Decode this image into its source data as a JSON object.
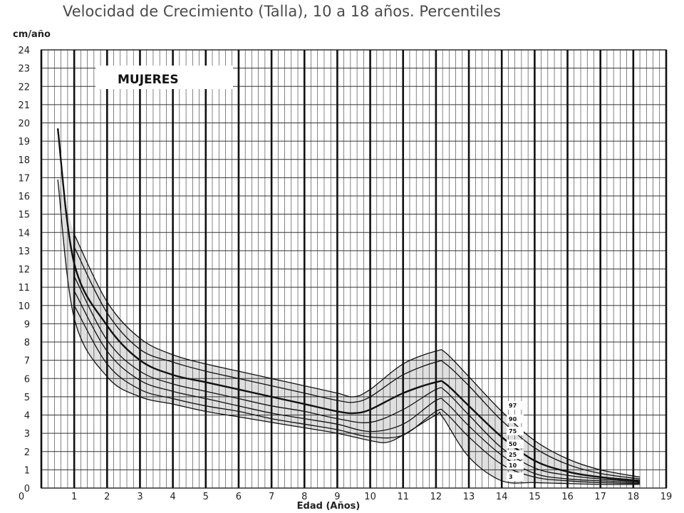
{
  "title": "Velocidad de Crecimiento (Talla), 10 a 18 años. Percentiles",
  "chart_data": {
    "type": "line",
    "title": "Velocidad de Crecimiento (Talla), 10 a 18 años. Percentiles",
    "panel_label": "MUJERES",
    "ylabel": "cm/año",
    "xlabel": "Edad (Años)",
    "xlim": [
      0,
      19
    ],
    "ylim": [
      0,
      24
    ],
    "x_ticks": [
      0,
      1,
      2,
      3,
      4,
      5,
      6,
      7,
      8,
      9,
      10,
      11,
      12,
      13,
      14,
      15,
      16,
      17,
      18,
      19
    ],
    "y_ticks": [
      0,
      1,
      2,
      3,
      4,
      5,
      6,
      7,
      8,
      9,
      10,
      11,
      12,
      13,
      14,
      15,
      16,
      17,
      18,
      19,
      20,
      21,
      22,
      23,
      24
    ],
    "grid": true,
    "series": [
      {
        "name": "97",
        "x": [
          1,
          2,
          3,
          4,
          5,
          6,
          7,
          8,
          9,
          9.5,
          10,
          11,
          12,
          12.3,
          13,
          14,
          15,
          16,
          17,
          18.2
        ],
        "y": [
          13.9,
          10.2,
          8.2,
          7.3,
          6.8,
          6.4,
          6.0,
          5.6,
          5.2,
          5.0,
          5.4,
          6.8,
          7.5,
          7.4,
          6.1,
          4.2,
          2.6,
          1.6,
          1.0,
          0.6
        ]
      },
      {
        "name": "90",
        "x": [
          1,
          2,
          3,
          4,
          5,
          6,
          7,
          8,
          9,
          9.5,
          10,
          11,
          12,
          12.3,
          13,
          14,
          15,
          16,
          17,
          18.2
        ],
        "y": [
          13.2,
          9.6,
          7.6,
          6.9,
          6.4,
          6.0,
          5.6,
          5.2,
          4.8,
          4.7,
          5.0,
          6.2,
          6.9,
          6.8,
          5.6,
          3.7,
          2.2,
          1.3,
          0.8,
          0.5
        ]
      },
      {
        "name": "75",
        "x": [
          0.5,
          1,
          2,
          3,
          4,
          5,
          6,
          7,
          8,
          9,
          9.5,
          10,
          11,
          12,
          12.3,
          13,
          14,
          15,
          16,
          17,
          18.2
        ],
        "y": [
          19.7,
          12.3,
          8.9,
          7.0,
          6.2,
          5.8,
          5.4,
          5.0,
          4.6,
          4.2,
          4.1,
          4.3,
          5.2,
          5.8,
          5.7,
          4.5,
          2.8,
          1.5,
          0.9,
          0.6,
          0.4
        ]
      },
      {
        "name": "50",
        "x": [
          1,
          2,
          3,
          4,
          5,
          6,
          7,
          8,
          9,
          10,
          11,
          12,
          12.3,
          13,
          14,
          15,
          16,
          17,
          18.2
        ],
        "y": [
          11.6,
          8.1,
          6.4,
          5.7,
          5.3,
          4.9,
          4.5,
          4.2,
          3.8,
          3.6,
          4.3,
          5.4,
          5.3,
          4.0,
          2.2,
          1.1,
          0.7,
          0.5,
          0.35
        ]
      },
      {
        "name": "25",
        "x": [
          1,
          2,
          3,
          4,
          5,
          6,
          7,
          8,
          9,
          10,
          11,
          12,
          12.3,
          13,
          14,
          15,
          16,
          17,
          18.2
        ],
        "y": [
          10.8,
          7.5,
          5.9,
          5.3,
          4.9,
          4.5,
          4.1,
          3.8,
          3.5,
          3.1,
          3.5,
          4.8,
          4.7,
          3.4,
          1.8,
          0.8,
          0.5,
          0.4,
          0.3
        ]
      },
      {
        "name": "10",
        "x": [
          1,
          2,
          3,
          4,
          5,
          6,
          7,
          8,
          9,
          10,
          11,
          12,
          12.3,
          13,
          14,
          15,
          16,
          17,
          18.2
        ],
        "y": [
          10.0,
          6.8,
          5.4,
          4.9,
          4.5,
          4.2,
          3.8,
          3.5,
          3.2,
          2.8,
          2.9,
          4.2,
          4.1,
          2.8,
          1.3,
          0.6,
          0.4,
          0.3,
          0.25
        ]
      },
      {
        "name": "3",
        "x": [
          0.5,
          1,
          2,
          3,
          4,
          5,
          6,
          7,
          8,
          9,
          10,
          10.5,
          11,
          12,
          12.2,
          13,
          14,
          15,
          16,
          17,
          18.2
        ],
        "y": [
          16.9,
          9.3,
          6.1,
          5.0,
          4.6,
          4.2,
          3.9,
          3.6,
          3.3,
          3.0,
          2.6,
          2.5,
          2.9,
          4.0,
          3.9,
          1.7,
          0.4,
          0.3,
          0.25,
          0.2,
          0.2
        ]
      }
    ],
    "percentile_labels": [
      "97",
      "90",
      "75",
      "50",
      "25",
      "10",
      "3"
    ]
  }
}
